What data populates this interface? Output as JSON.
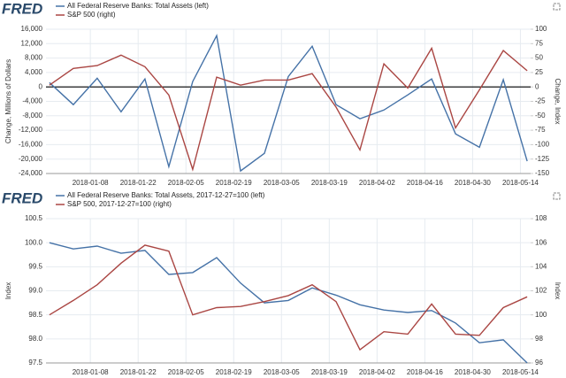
{
  "chart_data": [
    {
      "type": "line",
      "logo": "FRED",
      "ylabel": "Change, Millions of Dollars",
      "y2label": "Change, Index",
      "x": [
        "2017-12-27",
        "2018-01-03",
        "2018-01-10",
        "2018-01-17",
        "2018-01-24",
        "2018-01-31",
        "2018-02-07",
        "2018-02-14",
        "2018-02-21",
        "2018-02-28",
        "2018-03-07",
        "2018-03-14",
        "2018-03-21",
        "2018-03-28",
        "2018-04-04",
        "2018-04-11",
        "2018-04-18",
        "2018-04-25",
        "2018-05-02",
        "2018-05-09",
        "2018-05-16"
      ],
      "xlim": [
        "2017-12-26",
        "2018-05-17"
      ],
      "xticks": [
        "2018-01-08",
        "2018-01-22",
        "2018-02-05",
        "2018-02-19",
        "2018-03-05",
        "2018-03-19",
        "2018-04-02",
        "2018-04-16",
        "2018-04-30",
        "2018-05-14"
      ],
      "series": [
        {
          "name": "All Federal Reserve Banks: Total Assets (left)",
          "color": "#4572a7",
          "axis": "y",
          "values": [
            1200,
            -4900,
            2400,
            -6900,
            2200,
            -22100,
            1500,
            14200,
            -23300,
            -18400,
            2900,
            11300,
            -4900,
            -8800,
            -6400,
            -2200,
            2200,
            -13000,
            -16700,
            2000,
            -20600
          ]
        },
        {
          "name": "S&P 500 (right)",
          "color": "#aa4643",
          "axis": "y2",
          "values": [
            3,
            32,
            37,
            55,
            35,
            -14,
            -143,
            17,
            3,
            12,
            12,
            23,
            -35,
            -109,
            40,
            -2,
            67,
            -71,
            -5,
            63,
            28
          ]
        }
      ],
      "ylim": [
        -24000,
        16000
      ],
      "yticks": [
        {
          "value": 16000,
          "label": "16,000"
        },
        {
          "value": 12000,
          "label": "12,000"
        },
        {
          "value": 8000,
          "label": "8,000"
        },
        {
          "value": 4000,
          "label": "4,000"
        },
        0,
        {
          "value": -4000,
          "label": "-4,000"
        },
        {
          "value": -8000,
          "label": "-8,000"
        },
        {
          "value": -12000,
          "label": "-12,000"
        },
        {
          "value": -16000,
          "label": "-16,000"
        },
        {
          "value": -20000,
          "label": "-20,000"
        },
        {
          "value": -24000,
          "label": "-24,000"
        }
      ],
      "y2lim": [
        -150,
        100
      ],
      "y2ticks": [
        100,
        75,
        50,
        25,
        0,
        -25,
        -50,
        -75,
        -100,
        -125,
        -150
      ],
      "grid": true,
      "zero_line": true
    },
    {
      "type": "line",
      "logo": "FRED",
      "ylabel": "Index",
      "y2label": "Index",
      "x": [
        "2017-12-27",
        "2018-01-03",
        "2018-01-10",
        "2018-01-17",
        "2018-01-24",
        "2018-01-31",
        "2018-02-07",
        "2018-02-14",
        "2018-02-21",
        "2018-02-28",
        "2018-03-07",
        "2018-03-14",
        "2018-03-21",
        "2018-03-28",
        "2018-04-04",
        "2018-04-11",
        "2018-04-18",
        "2018-04-25",
        "2018-05-02",
        "2018-05-09",
        "2018-05-16"
      ],
      "xlim": [
        "2017-12-26",
        "2018-05-17"
      ],
      "xticks": [
        "2018-01-08",
        "2018-01-22",
        "2018-02-05",
        "2018-02-19",
        "2018-03-05",
        "2018-03-19",
        "2018-04-02",
        "2018-04-16",
        "2018-04-30",
        "2018-05-14"
      ],
      "series": [
        {
          "name": "All Federal Reserve Banks: Total Assets, 2017-12-27=100 (left)",
          "color": "#4572a7",
          "axis": "y",
          "values": [
            100.0,
            99.87,
            99.93,
            99.78,
            99.84,
            99.34,
            99.38,
            99.69,
            99.16,
            98.75,
            98.8,
            99.06,
            98.91,
            98.71,
            98.6,
            98.55,
            98.59,
            98.33,
            97.92,
            97.98,
            97.5
          ]
        },
        {
          "name": "S&P 500, 2017-12-27=100 (right)",
          "color": "#aa4643",
          "axis": "y2",
          "values": [
            100.0,
            101.2,
            102.5,
            104.3,
            105.8,
            105.3,
            100.0,
            100.6,
            100.7,
            101.1,
            101.6,
            102.5,
            101.1,
            97.1,
            98.6,
            98.4,
            100.9,
            98.4,
            98.3,
            100.6,
            101.5
          ]
        }
      ],
      "ylim": [
        97.5,
        100.5
      ],
      "yticks": [
        100.5,
        {
          "value": 100,
          "label": "100.0"
        },
        99.5,
        {
          "value": 99,
          "label": "99.0"
        },
        98.5,
        {
          "value": 98,
          "label": "98.0"
        },
        97.5
      ],
      "y2lim": [
        96,
        108
      ],
      "y2ticks": [
        108,
        106,
        104,
        102,
        100,
        98,
        96
      ],
      "grid": true,
      "zero_line": false
    }
  ]
}
